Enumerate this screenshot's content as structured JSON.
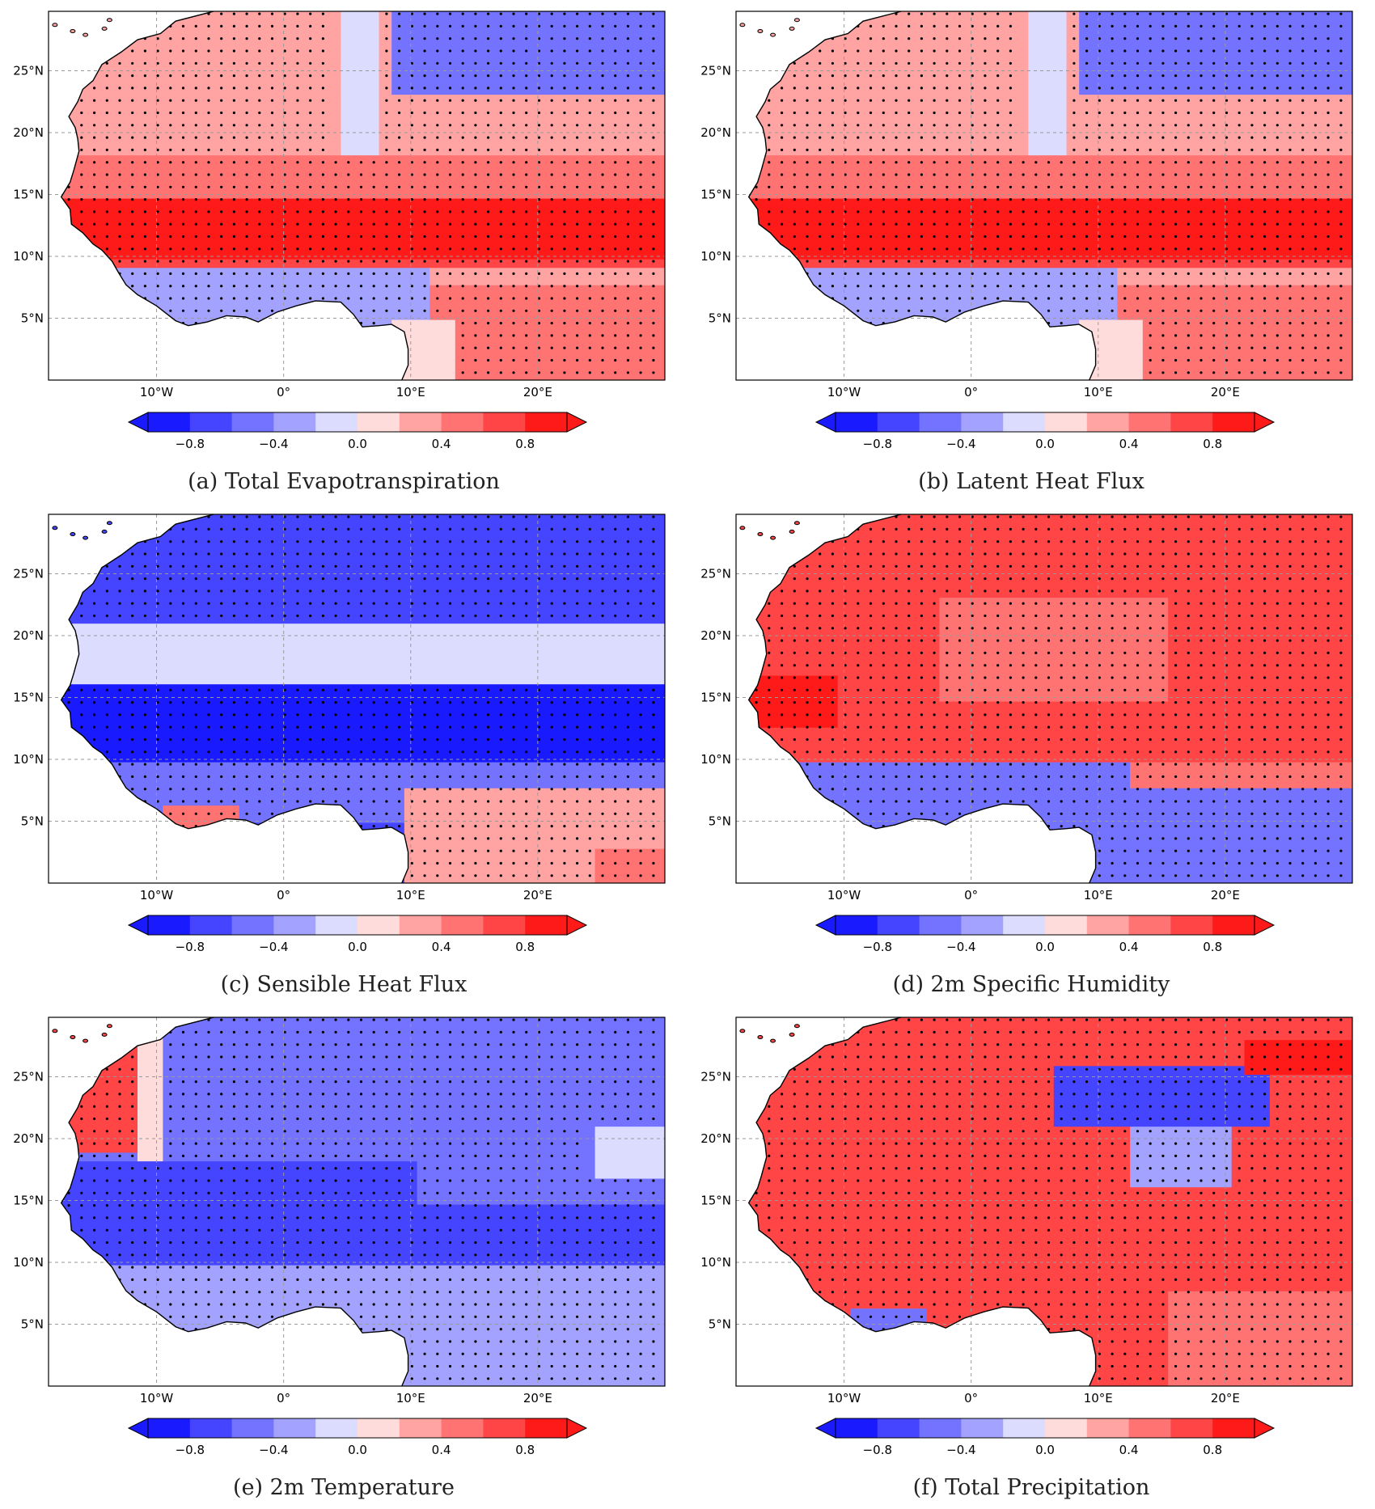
{
  "figure": {
    "lon_range": [
      -18.5,
      30
    ],
    "lat_range": [
      0,
      29.8
    ],
    "lon_ticks": [
      {
        "value": -10,
        "label": "10°W"
      },
      {
        "value": 0,
        "label": "0°"
      },
      {
        "value": 10,
        "label": "10°E"
      },
      {
        "value": 20,
        "label": "20°E"
      }
    ],
    "lat_ticks": [
      {
        "value": 5,
        "label": "5°N"
      },
      {
        "value": 10,
        "label": "10°N"
      },
      {
        "value": 15,
        "label": "15°N"
      },
      {
        "value": 20,
        "label": "20°N"
      },
      {
        "value": 25,
        "label": "25°N"
      }
    ],
    "colorbar": {
      "levels": [
        -1.0,
        -0.8,
        -0.6,
        -0.4,
        -0.2,
        0.0,
        0.2,
        0.4,
        0.6,
        0.8,
        1.0
      ],
      "tick_values": [
        -0.8,
        -0.4,
        0.0,
        0.4,
        0.8
      ],
      "tick_labels": [
        "−0.8",
        "−0.4",
        "0.0",
        "0.4",
        "0.8"
      ],
      "colors": [
        "#1a1aff",
        "#4545ff",
        "#7373ff",
        "#a3a3ff",
        "#dcdcff",
        "#ffdcdc",
        "#ffa3a3",
        "#ff7373",
        "#ff4545",
        "#ff1a1a"
      ],
      "extend": "both"
    },
    "stippling": "dots mark statistically significant grid points"
  },
  "panels": [
    {
      "id": "a",
      "caption": "(a)  Total  Evapotranspiration",
      "field": "evap"
    },
    {
      "id": "b",
      "caption": "(b)  Latent  Heat  Flux",
      "field": "evap"
    },
    {
      "id": "c",
      "caption": "(c)  Sensible  Heat  Flux",
      "field": "shf"
    },
    {
      "id": "d",
      "caption": "(d)  2m  Specific  Humidity",
      "field": "q2m"
    },
    {
      "id": "e",
      "caption": "(e)  2m  Temperature",
      "field": "t2m"
    },
    {
      "id": "f",
      "caption": "(f)  Total  Precipitation",
      "field": "precip"
    }
  ],
  "chart_data": [
    {
      "type": "heatmap",
      "title": "(a)  Total  Evapotranspiration",
      "x": "longitude",
      "y": "latitude",
      "xlim": [
        -18.5,
        30
      ],
      "ylim": [
        0,
        29.8
      ],
      "value_range": [
        -1.0,
        1.0
      ],
      "regions": [
        {
          "lat_band": "23-29.8N",
          "lon_band": "8E-30E",
          "value": -0.5
        },
        {
          "lat_band": "18-29.8N",
          "lon_band": "16W-5E",
          "value": 0.3
        },
        {
          "lat_band": "15-18N",
          "lon_band": "16W-30E",
          "value": 0.55
        },
        {
          "lat_band": "10-15N",
          "lon_band": "17W-30E",
          "value": 0.85
        },
        {
          "lat_band": "4-9N",
          "lon_band": "14W-10E",
          "value": -0.3
        },
        {
          "lat_band": "0-8N",
          "lon_band": "14E-30E",
          "value": 0.45
        }
      ]
    },
    {
      "type": "heatmap",
      "title": "(b)  Latent  Heat  Flux",
      "x": "longitude",
      "y": "latitude",
      "xlim": [
        -18.5,
        30
      ],
      "ylim": [
        0,
        29.8
      ],
      "value_range": [
        -1.0,
        1.0
      ],
      "regions": [
        {
          "lat_band": "23-29.8N",
          "lon_band": "8E-30E",
          "value": -0.5
        },
        {
          "lat_band": "18-29.8N",
          "lon_band": "16W-5E",
          "value": 0.3
        },
        {
          "lat_band": "15-18N",
          "lon_band": "16W-30E",
          "value": 0.55
        },
        {
          "lat_band": "10-15N",
          "lon_band": "17W-30E",
          "value": 0.85
        },
        {
          "lat_band": "4-9N",
          "lon_band": "14W-10E",
          "value": -0.3
        },
        {
          "lat_band": "0-8N",
          "lon_band": "14E-30E",
          "value": 0.45
        }
      ]
    },
    {
      "type": "heatmap",
      "title": "(c)  Sensible  Heat  Flux",
      "x": "longitude",
      "y": "latitude",
      "xlim": [
        -18.5,
        30
      ],
      "ylim": [
        0,
        29.8
      ],
      "value_range": [
        -1.0,
        1.0
      ],
      "regions": [
        {
          "lat_band": "21-29.8N",
          "lon_band": "16W-30E",
          "value": -0.75
        },
        {
          "lat_band": "16-21N",
          "lon_band": "16W-30E",
          "value": -0.05
        },
        {
          "lat_band": "10-16N",
          "lon_band": "17W-30E",
          "value": -0.9
        },
        {
          "lat_band": "5-10N",
          "lon_band": "14W-30E",
          "value": -0.45
        },
        {
          "lat_band": "4-6N",
          "lon_band": "10W-3W",
          "value": 0.5
        },
        {
          "lat_band": "0-8N",
          "lon_band": "10E-30E",
          "value": 0.2
        }
      ]
    },
    {
      "type": "heatmap",
      "title": "(d)  2m  Specific  Humidity",
      "x": "longitude",
      "y": "latitude",
      "xlim": [
        -18.5,
        30
      ],
      "ylim": [
        0,
        29.8
      ],
      "value_range": [
        -1.0,
        1.0
      ],
      "regions": [
        {
          "lat_band": "10-29.8N",
          "lon_band": "16W-30E",
          "value": 0.65
        },
        {
          "lat_band": "15-23N",
          "lon_band": "2W-15E",
          "value": 0.4
        },
        {
          "lat_band": "13-17N",
          "lon_band": "17W-11W",
          "value": 0.9
        },
        {
          "lat_band": "0-10N",
          "lon_band": "14W-30E",
          "value": -0.45
        }
      ]
    },
    {
      "type": "heatmap",
      "title": "(e)  2m  Temperature",
      "x": "longitude",
      "y": "latitude",
      "xlim": [
        -18.5,
        30
      ],
      "ylim": [
        0,
        29.8
      ],
      "value_range": [
        -1.0,
        1.0
      ],
      "regions": [
        {
          "lat_band": "19-29.8N",
          "lon_band": "16W-12W",
          "value": 0.6
        },
        {
          "lat_band": "17-29.8N",
          "lon_band": "10W-30E",
          "value": -0.45
        },
        {
          "lat_band": "10-18N",
          "lon_band": "17W-30E",
          "value": -0.75
        },
        {
          "lat_band": "0-10N",
          "lon_band": "14W-30E",
          "value": -0.4
        }
      ]
    },
    {
      "type": "heatmap",
      "title": "(f)  Total  Precipitation",
      "x": "longitude",
      "y": "latitude",
      "xlim": [
        -18.5,
        30
      ],
      "ylim": [
        0,
        29.8
      ],
      "value_range": [
        -1.0,
        1.0
      ],
      "regions": [
        {
          "lat_band": "0-29.8N",
          "lon_band": "16W-30E",
          "value": 0.6
        },
        {
          "lat_band": "21-26N",
          "lon_band": "7E-23E",
          "value": -0.7
        },
        {
          "lat_band": "16-21N",
          "lon_band": "13E-20E",
          "value": -0.3
        },
        {
          "lat_band": "4-6N",
          "lon_band": "10W-3W",
          "value": -0.5
        }
      ]
    }
  ]
}
